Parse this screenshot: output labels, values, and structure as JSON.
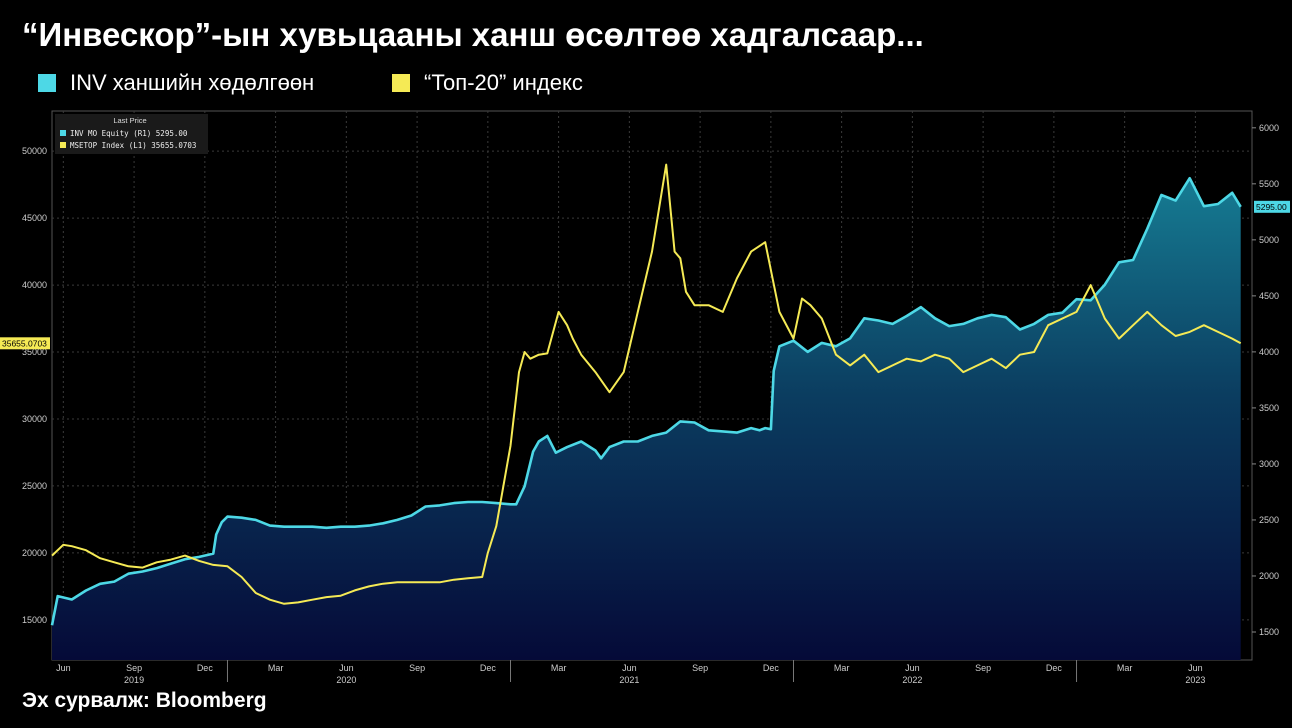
{
  "header": {
    "title": "“Инвескор”-ын хувьцааны ханш өсөлтөө хадгалсаар...",
    "legend": [
      {
        "label": "INV ханшийн хөдөлгөөн",
        "color": "#4dd8e6"
      },
      {
        "label": "“Топ-20” индекс",
        "color": "#f5ea55"
      }
    ]
  },
  "footer": {
    "source": "Эх сурвалж: Bloomberg"
  },
  "chart_data": {
    "type": "line",
    "inner_legend": {
      "heading": "Last Price",
      "rows": [
        "INV MO Equity  (R1)  5295.00",
        "MSETOP Index  (L1) 35655.0703"
      ]
    },
    "x_ticks": [
      "Jun",
      "Sep",
      "Dec",
      "Mar",
      "Jun",
      "Sep",
      "Dec",
      "Mar",
      "Jun",
      "Sep",
      "Dec",
      "Mar",
      "Jun",
      "Sep",
      "Dec",
      "Mar",
      "Jun"
    ],
    "x_tick_times": [
      2019.42,
      2019.67,
      2019.92,
      2020.17,
      2020.42,
      2020.67,
      2020.92,
      2021.17,
      2021.42,
      2021.67,
      2021.92,
      2022.17,
      2022.42,
      2022.67,
      2022.92,
      2023.17,
      2023.42
    ],
    "year_labels": [
      "2019",
      "2020",
      "2021",
      "2022",
      "2023"
    ],
    "year_times": [
      2019.67,
      2020.42,
      2021.42,
      2022.42,
      2023.42
    ],
    "xlim": [
      2019.38,
      2023.62
    ],
    "left_axis": {
      "ylim": [
        12000,
        53000
      ],
      "ticks": [
        15000,
        20000,
        25000,
        30000,
        35000,
        40000,
        45000,
        50000
      ]
    },
    "right_axis": {
      "ylim": [
        1250,
        6150
      ],
      "ticks": [
        1500,
        2000,
        2500,
        3000,
        3500,
        4000,
        4500,
        5000,
        5500,
        6000
      ]
    },
    "last_value_left": "35655.0703",
    "last_value_right": "5295.00",
    "series": [
      {
        "name": "INV MO Equity",
        "axis": "right",
        "color": "#4dd8e6",
        "x": [
          2019.38,
          2019.4,
          2019.45,
          2019.5,
          2019.55,
          2019.6,
          2019.65,
          2019.7,
          2019.75,
          2019.8,
          2019.85,
          2019.9,
          2019.95,
          2019.96,
          2019.98,
          2020.0,
          2020.05,
          2020.1,
          2020.15,
          2020.2,
          2020.25,
          2020.3,
          2020.35,
          2020.4,
          2020.45,
          2020.5,
          2020.55,
          2020.6,
          2020.65,
          2020.7,
          2020.75,
          2020.8,
          2020.85,
          2020.9,
          2020.95,
          2021.0,
          2021.02,
          2021.05,
          2021.08,
          2021.1,
          2021.13,
          2021.16,
          2021.2,
          2021.25,
          2021.3,
          2021.32,
          2021.35,
          2021.4,
          2021.45,
          2021.5,
          2021.55,
          2021.6,
          2021.65,
          2021.7,
          2021.75,
          2021.8,
          2021.85,
          2021.88,
          2021.9,
          2021.92,
          2021.93,
          2021.95,
          2022.0,
          2022.05,
          2022.1,
          2022.15,
          2022.2,
          2022.25,
          2022.3,
          2022.35,
          2022.4,
          2022.45,
          2022.5,
          2022.55,
          2022.6,
          2022.65,
          2022.7,
          2022.75,
          2022.8,
          2022.85,
          2022.9,
          2022.95,
          2023.0,
          2023.05,
          2023.1,
          2023.15,
          2023.2,
          2023.25,
          2023.3,
          2023.35,
          2023.4,
          2023.45,
          2023.5,
          2023.55,
          2023.58
        ],
        "y": [
          1560,
          1820,
          1790,
          1870,
          1930,
          1950,
          2020,
          2040,
          2070,
          2110,
          2150,
          2170,
          2200,
          2370,
          2480,
          2530,
          2520,
          2500,
          2450,
          2440,
          2440,
          2440,
          2430,
          2440,
          2440,
          2450,
          2470,
          2500,
          2540,
          2620,
          2630,
          2650,
          2660,
          2660,
          2650,
          2640,
          2640,
          2800,
          3110,
          3200,
          3250,
          3100,
          3150,
          3200,
          3120,
          3050,
          3150,
          3200,
          3200,
          3250,
          3280,
          3380,
          3370,
          3300,
          3290,
          3280,
          3320,
          3300,
          3320,
          3310,
          3830,
          4050,
          4100,
          4000,
          4080,
          4050,
          4120,
          4300,
          4280,
          4250,
          4320,
          4400,
          4300,
          4230,
          4250,
          4300,
          4330,
          4310,
          4200,
          4250,
          4330,
          4350,
          4470,
          4460,
          4600,
          4800,
          4820,
          5100,
          5400,
          5350,
          5550,
          5300,
          5320,
          5420,
          5295
        ]
      },
      {
        "name": "MSETOP Index",
        "axis": "left",
        "color": "#f5ea55",
        "x": [
          2019.38,
          2019.42,
          2019.45,
          2019.5,
          2019.55,
          2019.6,
          2019.65,
          2019.7,
          2019.75,
          2019.8,
          2019.85,
          2019.9,
          2019.95,
          2020.0,
          2020.05,
          2020.1,
          2020.15,
          2020.2,
          2020.25,
          2020.3,
          2020.35,
          2020.4,
          2020.45,
          2020.5,
          2020.55,
          2020.6,
          2020.65,
          2020.7,
          2020.75,
          2020.8,
          2020.85,
          2020.9,
          2020.92,
          2020.95,
          2021.0,
          2021.03,
          2021.05,
          2021.07,
          2021.1,
          2021.13,
          2021.17,
          2021.2,
          2021.22,
          2021.25,
          2021.3,
          2021.35,
          2021.4,
          2021.45,
          2021.5,
          2021.55,
          2021.58,
          2021.6,
          2021.62,
          2021.65,
          2021.7,
          2021.75,
          2021.8,
          2021.85,
          2021.9,
          2021.95,
          2022.0,
          2022.03,
          2022.06,
          2022.1,
          2022.15,
          2022.2,
          2022.25,
          2022.3,
          2022.35,
          2022.4,
          2022.45,
          2022.5,
          2022.55,
          2022.6,
          2022.65,
          2022.7,
          2022.75,
          2022.8,
          2022.85,
          2022.9,
          2022.95,
          2023.0,
          2023.05,
          2023.1,
          2023.15,
          2023.2,
          2023.25,
          2023.3,
          2023.35,
          2023.4,
          2023.45,
          2023.5,
          2023.55,
          2023.58
        ],
        "y": [
          19800,
          20600,
          20500,
          20200,
          19600,
          19300,
          19000,
          18900,
          19300,
          19500,
          19800,
          19400,
          19100,
          19000,
          18200,
          17000,
          16500,
          16200,
          16300,
          16500,
          16700,
          16800,
          17200,
          17500,
          17700,
          17800,
          17800,
          17800,
          17800,
          18000,
          18100,
          18200,
          20000,
          22000,
          28000,
          33500,
          35000,
          34500,
          34800,
          34900,
          38000,
          37000,
          36000,
          34800,
          33500,
          32000,
          33500,
          38000,
          42500,
          49000,
          42500,
          42000,
          39500,
          38500,
          38500,
          38000,
          40500,
          42500,
          43200,
          38000,
          36000,
          39000,
          38500,
          37500,
          34800,
          34000,
          34800,
          33500,
          34000,
          34500,
          34300,
          34800,
          34500,
          33500,
          34000,
          34500,
          33800,
          34800,
          35000,
          37000,
          37500,
          38000,
          40000,
          37500,
          36000,
          37000,
          38000,
          37000,
          36200,
          36500,
          37000,
          36500,
          36000,
          35655
        ]
      }
    ]
  }
}
